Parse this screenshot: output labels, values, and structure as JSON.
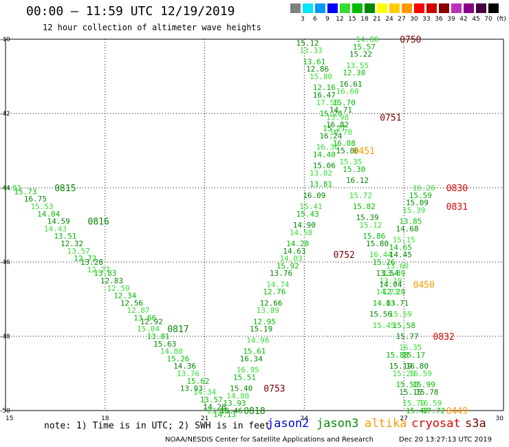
{
  "header": {
    "title": "00:00 – 11:59 UTC 12/19/2019",
    "subtitle": "12 hour collection of altimeter wave heights"
  },
  "legend": {
    "unit": "(ft)",
    "bins": [
      {
        "color": "#808080",
        "label": "3"
      },
      {
        "color": "#00e5ff",
        "label": "6"
      },
      {
        "color": "#0099ff",
        "label": "9"
      },
      {
        "color": "#0000ff",
        "label": "12"
      },
      {
        "color": "#33dd33",
        "label": "15"
      },
      {
        "color": "#00bb00",
        "label": "18"
      },
      {
        "color": "#008800",
        "label": "21"
      },
      {
        "color": "#ffff00",
        "label": "24"
      },
      {
        "color": "#ffcc00",
        "label": "27"
      },
      {
        "color": "#ff9900",
        "label": "30"
      },
      {
        "color": "#ff0000",
        "label": "33"
      },
      {
        "color": "#cc0000",
        "label": "36"
      },
      {
        "color": "#880000",
        "label": "39"
      },
      {
        "color": "#bb33bb",
        "label": "42"
      },
      {
        "color": "#880088",
        "label": "45"
      },
      {
        "color": "#440044",
        "label": "70"
      },
      {
        "color": "#000000",
        "label": ""
      }
    ]
  },
  "chart_data": {
    "type": "scatter",
    "xlim": [
      15,
      30
    ],
    "ylim": [
      -50,
      -40
    ],
    "x_ticks": [
      "15",
      "18",
      "21",
      "24",
      "27",
      "30"
    ],
    "y_ticks": [
      "-40",
      "-42",
      "-44",
      "-46",
      "-48",
      "-50"
    ],
    "grid": true,
    "colors": {
      "light": "#33dd33",
      "mid": "#00bb00",
      "dark": "#008800",
      "time_green": "#008800",
      "time_maroon": "#770000",
      "time_red": "#dd0000",
      "time_orange": "#ff9900"
    },
    "series": [
      {
        "name": "jason3",
        "points": [
          {
            "x": 15.2,
            "y": -44.0,
            "v": "4.83"
          },
          {
            "x": 15.6,
            "y": -44.1,
            "v": "15.73"
          },
          {
            "x": 15.9,
            "y": -44.3,
            "v": "16.75"
          },
          {
            "x": 16.1,
            "y": -44.5,
            "v": "15.53"
          },
          {
            "x": 16.3,
            "y": -44.7,
            "v": "14.04"
          },
          {
            "x": 16.6,
            "y": -44.9,
            "v": "14.59"
          },
          {
            "x": 16.5,
            "y": -45.1,
            "v": "14.43"
          },
          {
            "x": 16.8,
            "y": -45.3,
            "v": "13.51"
          },
          {
            "x": 17.0,
            "y": -45.5,
            "v": "12.32"
          },
          {
            "x": 17.2,
            "y": -45.7,
            "v": "13.57"
          },
          {
            "x": 17.4,
            "y": -45.9,
            "v": "12.72"
          },
          {
            "x": 17.6,
            "y": -46.0,
            "v": "13.28"
          },
          {
            "x": 17.8,
            "y": -46.2,
            "v": "12.27"
          },
          {
            "x": 18.0,
            "y": -46.3,
            "v": "13.83"
          },
          {
            "x": 18.2,
            "y": -46.5,
            "v": "12.83"
          },
          {
            "x": 18.4,
            "y": -46.7,
            "v": "12.59"
          },
          {
            "x": 18.6,
            "y": -46.9,
            "v": "12.34"
          },
          {
            "x": 18.8,
            "y": -47.1,
            "v": "12.56"
          },
          {
            "x": 19.0,
            "y": -47.3,
            "v": "12.87"
          },
          {
            "x": 19.2,
            "y": -47.5,
            "v": "13.66"
          },
          {
            "x": 19.4,
            "y": -47.6,
            "v": "12.92"
          },
          {
            "x": 19.3,
            "y": -47.8,
            "v": "15.04"
          },
          {
            "x": 19.6,
            "y": -48.0,
            "v": "13.81"
          },
          {
            "x": 19.8,
            "y": -48.2,
            "v": "15.63"
          },
          {
            "x": 20.0,
            "y": -48.4,
            "v": "14.80"
          },
          {
            "x": 20.2,
            "y": -48.6,
            "v": "15.26"
          },
          {
            "x": 20.4,
            "y": -48.8,
            "v": "14.36"
          },
          {
            "x": 20.5,
            "y": -49.0,
            "v": "13.76"
          },
          {
            "x": 20.8,
            "y": -49.2,
            "v": "15.62"
          },
          {
            "x": 20.6,
            "y": -49.4,
            "v": "13.93"
          },
          {
            "x": 21.0,
            "y": -49.5,
            "v": "14.34"
          },
          {
            "x": 21.2,
            "y": -49.7,
            "v": "13.57"
          },
          {
            "x": 21.3,
            "y": -49.9,
            "v": "14.26"
          },
          {
            "x": 21.4,
            "y": -50.0,
            "v": "13.98"
          },
          {
            "x": 21.6,
            "y": -50.1,
            "v": "14.13"
          },
          {
            "x": 24.1,
            "y": -40.1,
            "v": "15.12"
          },
          {
            "x": 24.2,
            "y": -40.3,
            "v": "13.33"
          },
          {
            "x": 24.3,
            "y": -40.6,
            "v": "13.61"
          },
          {
            "x": 24.4,
            "y": -40.8,
            "v": "12.86"
          },
          {
            "x": 24.5,
            "y": -41.0,
            "v": "15.80"
          },
          {
            "x": 24.6,
            "y": -41.3,
            "v": "12.16"
          },
          {
            "x": 24.6,
            "y": -41.5,
            "v": "16.47"
          },
          {
            "x": 24.7,
            "y": -41.7,
            "v": "17.55"
          },
          {
            "x": 24.8,
            "y": -42.0,
            "v": "15.26"
          },
          {
            "x": 25.0,
            "y": -42.3,
            "v": "16.82"
          },
          {
            "x": 25.1,
            "y": -42.5,
            "v": "16.78"
          },
          {
            "x": 25.2,
            "y": -42.8,
            "v": "16.08"
          },
          {
            "x": 25.3,
            "y": -43.0,
            "v": "15.80"
          },
          {
            "x": 25.4,
            "y": -43.3,
            "v": "15.35"
          },
          {
            "x": 25.5,
            "y": -43.5,
            "v": "15.30"
          },
          {
            "x": 25.6,
            "y": -43.8,
            "v": "16.12"
          },
          {
            "x": 25.7,
            "y": -44.2,
            "v": "15.72"
          },
          {
            "x": 25.8,
            "y": -44.5,
            "v": "15.82"
          },
          {
            "x": 25.9,
            "y": -44.8,
            "v": "15.39"
          },
          {
            "x": 26.0,
            "y": -45.0,
            "v": "15.12"
          },
          {
            "x": 26.1,
            "y": -45.3,
            "v": "15.86"
          },
          {
            "x": 26.2,
            "y": -45.5,
            "v": "15.80"
          },
          {
            "x": 26.3,
            "y": -45.8,
            "v": "16.44"
          },
          {
            "x": 26.4,
            "y": -46.0,
            "v": "15.26"
          },
          {
            "x": 26.5,
            "y": -46.3,
            "v": "13.54"
          },
          {
            "x": 26.6,
            "y": -46.5,
            "v": "13.19"
          },
          {
            "x": 26.7,
            "y": -46.8,
            "v": "12.28"
          },
          {
            "x": 26.8,
            "y": -47.1,
            "v": "13.71"
          },
          {
            "x": 26.9,
            "y": -47.4,
            "v": "15.59"
          },
          {
            "x": 27.0,
            "y": -47.7,
            "v": "15.58"
          },
          {
            "x": 27.1,
            "y": -48.0,
            "v": "15.77"
          },
          {
            "x": 27.2,
            "y": -48.3,
            "v": "16.35"
          },
          {
            "x": 27.3,
            "y": -48.5,
            "v": "15.17"
          },
          {
            "x": 27.4,
            "y": -48.8,
            "v": "16.80"
          },
          {
            "x": 27.5,
            "y": -49.0,
            "v": "16.59"
          },
          {
            "x": 27.6,
            "y": -49.3,
            "v": "15.99"
          },
          {
            "x": 27.7,
            "y": -49.5,
            "v": "15.78"
          },
          {
            "x": 27.8,
            "y": -49.8,
            "v": "16.59"
          },
          {
            "x": 27.9,
            "y": -50.0,
            "v": "17.72"
          }
        ]
      },
      {
        "name": "altika",
        "points": [
          {
            "x": 25.9,
            "y": -40.0,
            "v": "14.88"
          },
          {
            "x": 25.8,
            "y": -40.2,
            "v": "15.57"
          },
          {
            "x": 25.7,
            "y": -40.4,
            "v": "15.22"
          },
          {
            "x": 25.6,
            "y": -40.7,
            "v": "13.55"
          },
          {
            "x": 25.5,
            "y": -40.9,
            "v": "12.30"
          },
          {
            "x": 25.4,
            "y": -41.2,
            "v": "16.61"
          },
          {
            "x": 25.3,
            "y": -41.4,
            "v": "16.60"
          },
          {
            "x": 25.2,
            "y": -41.7,
            "v": "15.70"
          },
          {
            "x": 25.1,
            "y": -41.9,
            "v": "14.71"
          },
          {
            "x": 25.0,
            "y": -42.1,
            "v": "15.98"
          },
          {
            "x": 24.9,
            "y": -42.4,
            "v": "15.27"
          },
          {
            "x": 24.8,
            "y": -42.6,
            "v": "16.24"
          },
          {
            "x": 24.7,
            "y": -42.9,
            "v": "16.36"
          },
          {
            "x": 24.6,
            "y": -43.1,
            "v": "14.40"
          },
          {
            "x": 24.6,
            "y": -43.4,
            "v": "15.06"
          },
          {
            "x": 24.5,
            "y": -43.6,
            "v": "13.02"
          },
          {
            "x": 24.5,
            "y": -43.9,
            "v": "13.81"
          },
          {
            "x": 24.3,
            "y": -44.2,
            "v": "16.09"
          },
          {
            "x": 24.2,
            "y": -44.5,
            "v": "15.41"
          },
          {
            "x": 24.1,
            "y": -44.7,
            "v": "15.43"
          },
          {
            "x": 24.0,
            "y": -45.0,
            "v": "14.90"
          },
          {
            "x": 23.9,
            "y": -45.2,
            "v": "14.58"
          },
          {
            "x": 23.8,
            "y": -45.5,
            "v": "14.28"
          },
          {
            "x": 23.7,
            "y": -45.7,
            "v": "14.63"
          },
          {
            "x": 23.6,
            "y": -45.9,
            "v": "14.03"
          },
          {
            "x": 23.5,
            "y": -46.1,
            "v": "15.92"
          },
          {
            "x": 23.3,
            "y": -46.3,
            "v": "13.76"
          },
          {
            "x": 23.2,
            "y": -46.6,
            "v": "14.74"
          },
          {
            "x": 23.1,
            "y": -46.8,
            "v": "12.76"
          },
          {
            "x": 23.0,
            "y": -47.1,
            "v": "12.66"
          },
          {
            "x": 22.9,
            "y": -47.3,
            "v": "13.89"
          },
          {
            "x": 22.8,
            "y": -47.6,
            "v": "12.95"
          },
          {
            "x": 22.7,
            "y": -47.8,
            "v": "15.19"
          },
          {
            "x": 22.6,
            "y": -48.1,
            "v": "14.98"
          },
          {
            "x": 22.5,
            "y": -48.4,
            "v": "15.61"
          },
          {
            "x": 22.4,
            "y": -48.6,
            "v": "16.34"
          },
          {
            "x": 22.3,
            "y": -48.9,
            "v": "16.95"
          },
          {
            "x": 22.2,
            "y": -49.1,
            "v": "15.51"
          },
          {
            "x": 22.1,
            "y": -49.4,
            "v": "15.40"
          },
          {
            "x": 22.0,
            "y": -49.6,
            "v": "14.88"
          },
          {
            "x": 21.9,
            "y": -49.8,
            "v": "13.93"
          },
          {
            "x": 21.8,
            "y": -50.0,
            "v": "15.46"
          }
        ]
      },
      {
        "name": "cryosat",
        "points": [
          {
            "x": 27.6,
            "y": -44.0,
            "v": "16.26"
          },
          {
            "x": 27.5,
            "y": -44.2,
            "v": "15.59"
          },
          {
            "x": 27.4,
            "y": -44.4,
            "v": "15.09"
          },
          {
            "x": 27.3,
            "y": -44.6,
            "v": "15.39"
          },
          {
            "x": 27.2,
            "y": -44.9,
            "v": "13.85"
          },
          {
            "x": 27.1,
            "y": -45.1,
            "v": "14.68"
          },
          {
            "x": 27.0,
            "y": -45.4,
            "v": "15.15"
          },
          {
            "x": 26.9,
            "y": -45.6,
            "v": "14.65"
          },
          {
            "x": 26.9,
            "y": -45.8,
            "v": "14.45"
          },
          {
            "x": 26.8,
            "y": -46.1,
            "v": "13.60"
          },
          {
            "x": 26.7,
            "y": -46.3,
            "v": "13.89"
          },
          {
            "x": 26.6,
            "y": -46.6,
            "v": "14.04"
          },
          {
            "x": 26.5,
            "y": -46.8,
            "v": "14.77"
          },
          {
            "x": 26.4,
            "y": -47.1,
            "v": "14.03"
          },
          {
            "x": 26.3,
            "y": -47.4,
            "v": "15.56"
          },
          {
            "x": 26.4,
            "y": -47.7,
            "v": "15.45"
          },
          {
            "x": 26.8,
            "y": -48.5,
            "v": "15.88"
          },
          {
            "x": 26.9,
            "y": -48.8,
            "v": "15.19"
          },
          {
            "x": 27.0,
            "y": -49.0,
            "v": "15.29"
          },
          {
            "x": 27.1,
            "y": -49.3,
            "v": "15.50"
          },
          {
            "x": 27.2,
            "y": -49.5,
            "v": "15.15"
          },
          {
            "x": 27.3,
            "y": -49.8,
            "v": "15.79"
          },
          {
            "x": 27.4,
            "y": -50.0,
            "v": "15.47"
          }
        ]
      }
    ],
    "time_labels": [
      {
        "x": 16.8,
        "y": -44.0,
        "t": "0815",
        "c": "time_green"
      },
      {
        "x": 17.8,
        "y": -44.9,
        "t": "0816",
        "c": "time_green"
      },
      {
        "x": 20.2,
        "y": -47.8,
        "t": "0817",
        "c": "time_green"
      },
      {
        "x": 22.5,
        "y": -50.0,
        "t": "0818",
        "c": "time_green"
      },
      {
        "x": 27.2,
        "y": -40.0,
        "t": "0750",
        "c": "time_maroon"
      },
      {
        "x": 26.6,
        "y": -42.1,
        "t": "0751",
        "c": "time_maroon"
      },
      {
        "x": 25.2,
        "y": -45.8,
        "t": "0752",
        "c": "time_maroon"
      },
      {
        "x": 23.1,
        "y": -49.4,
        "t": "0753",
        "c": "time_maroon"
      },
      {
        "x": 28.6,
        "y": -44.0,
        "t": "0830",
        "c": "time_red"
      },
      {
        "x": 28.6,
        "y": -44.5,
        "t": "0831",
        "c": "time_red"
      },
      {
        "x": 28.2,
        "y": -48.0,
        "t": "0832",
        "c": "time_red"
      },
      {
        "x": 25.8,
        "y": -43.0,
        "t": "0451",
        "c": "time_orange"
      },
      {
        "x": 27.6,
        "y": -46.6,
        "t": "0450",
        "c": "time_orange"
      },
      {
        "x": 28.6,
        "y": -50.0,
        "t": "0449",
        "c": "time_orange"
      }
    ]
  },
  "footer": {
    "note": "note: 1) Time is in UTC; 2) SWH is in feet",
    "satellites": [
      {
        "label": "jason2",
        "color": "#0000dd",
        "left": 388
      },
      {
        "label": "jason3",
        "color": "#008800",
        "left": 460
      },
      {
        "label": "altika",
        "color": "#ff9900",
        "left": 530
      },
      {
        "label": "cryosat",
        "color": "#dd0000",
        "left": 598
      },
      {
        "label": "s3a",
        "color": "#770000",
        "left": 676
      }
    ],
    "credit": "NOAA/NESDIS Center for Satellite Applications and Research",
    "timestamp": "Dec 20 13:27:13 UTC 2019"
  }
}
